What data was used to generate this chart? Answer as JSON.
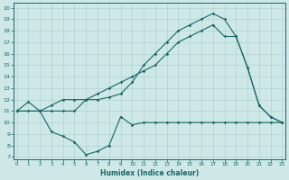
{
  "xlabel": "Humidex (Indice chaleur)",
  "bg_color": "#cde8e6",
  "grid_color": "#aacccc",
  "line_color": "#1a6666",
  "xlim": [
    -0.3,
    23.3
  ],
  "ylim": [
    6.8,
    20.4
  ],
  "xticks": [
    0,
    1,
    2,
    3,
    4,
    5,
    6,
    7,
    8,
    9,
    10,
    11,
    12,
    13,
    14,
    15,
    16,
    17,
    18,
    19,
    20,
    21,
    22,
    23
  ],
  "yticks": [
    7,
    8,
    9,
    10,
    11,
    12,
    13,
    14,
    15,
    16,
    17,
    18,
    19,
    20
  ],
  "curve1_x": [
    0,
    1,
    2,
    3,
    4,
    5,
    6,
    7,
    8,
    9,
    10,
    11,
    12,
    13,
    14,
    15,
    16,
    17,
    18,
    19,
    20,
    21,
    22,
    23
  ],
  "curve1_y": [
    11.0,
    11.8,
    11.0,
    9.2,
    8.8,
    8.3,
    7.2,
    7.5,
    8.0,
    10.5,
    9.8,
    10.0,
    10.0,
    10.0,
    10.0,
    10.0,
    10.0,
    10.0,
    10.0,
    10.0,
    10.0,
    10.0,
    10.0,
    10.0
  ],
  "curve2_x": [
    0,
    2,
    3,
    4,
    5,
    6,
    7,
    8,
    9,
    10,
    11,
    12,
    13,
    14,
    15,
    16,
    17,
    18,
    19,
    20,
    21,
    22,
    23
  ],
  "curve2_y": [
    11.0,
    11.0,
    11.5,
    12.0,
    12.0,
    12.0,
    12.0,
    12.2,
    12.5,
    13.5,
    15.0,
    16.0,
    17.0,
    18.0,
    18.5,
    19.0,
    19.5,
    19.0,
    17.5,
    14.8,
    11.5,
    10.5,
    10.0
  ],
  "curve3_x": [
    0,
    1,
    2,
    3,
    4,
    5,
    6,
    7,
    8,
    9,
    10,
    11,
    12,
    13,
    14,
    15,
    16,
    17,
    18,
    19,
    20,
    21,
    22,
    23
  ],
  "curve3_y": [
    11.0,
    11.0,
    11.0,
    11.0,
    11.0,
    11.0,
    12.0,
    12.5,
    13.0,
    13.5,
    14.0,
    14.5,
    15.0,
    16.0,
    17.0,
    17.5,
    18.0,
    18.5,
    17.5,
    17.5,
    14.8,
    11.5,
    10.5,
    10.0
  ]
}
